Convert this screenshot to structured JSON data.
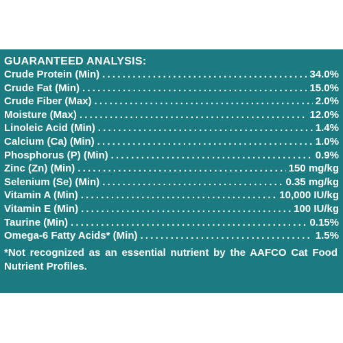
{
  "panel": {
    "background": "#1b7b80",
    "heading": "GUARANTEED ANALYSIS:",
    "rows": [
      {
        "label": "Crude Protein (Min)",
        "value": "34.0%"
      },
      {
        "label": "Crude Fat (Min)",
        "value": "15.0%"
      },
      {
        "label": "Crude Fiber (Max)",
        "value": "2.0%"
      },
      {
        "label": "Moisture (Max)",
        "value": "12.0%"
      },
      {
        "label": "Linoleic Acid (Min)",
        "value": "1.4%"
      },
      {
        "label": "Calcium (Ca) (Min)",
        "value": "1.0%"
      },
      {
        "label": "Phosphorus (P) (Min)",
        "value": "0.9%"
      },
      {
        "label": "Zinc (Zn) (Min)",
        "value": "150 mg/kg"
      },
      {
        "label": "Selenium (Se) (Min)",
        "value": "0.35 mg/kg"
      },
      {
        "label": "Vitamin A (Min)",
        "value": "10,000 IU/kg"
      },
      {
        "label": "Vitamin E (Min)",
        "value": "100 IU/kg"
      },
      {
        "label": "Taurine (Min)",
        "value": "0.15%"
      },
      {
        "label": "Omega-6 Fatty Acids* (Min)",
        "value": "1.5%"
      }
    ],
    "footnote": "*Not recognized as an essential nutrient by the AAFCO Cat Food Nutrient Profiles."
  }
}
